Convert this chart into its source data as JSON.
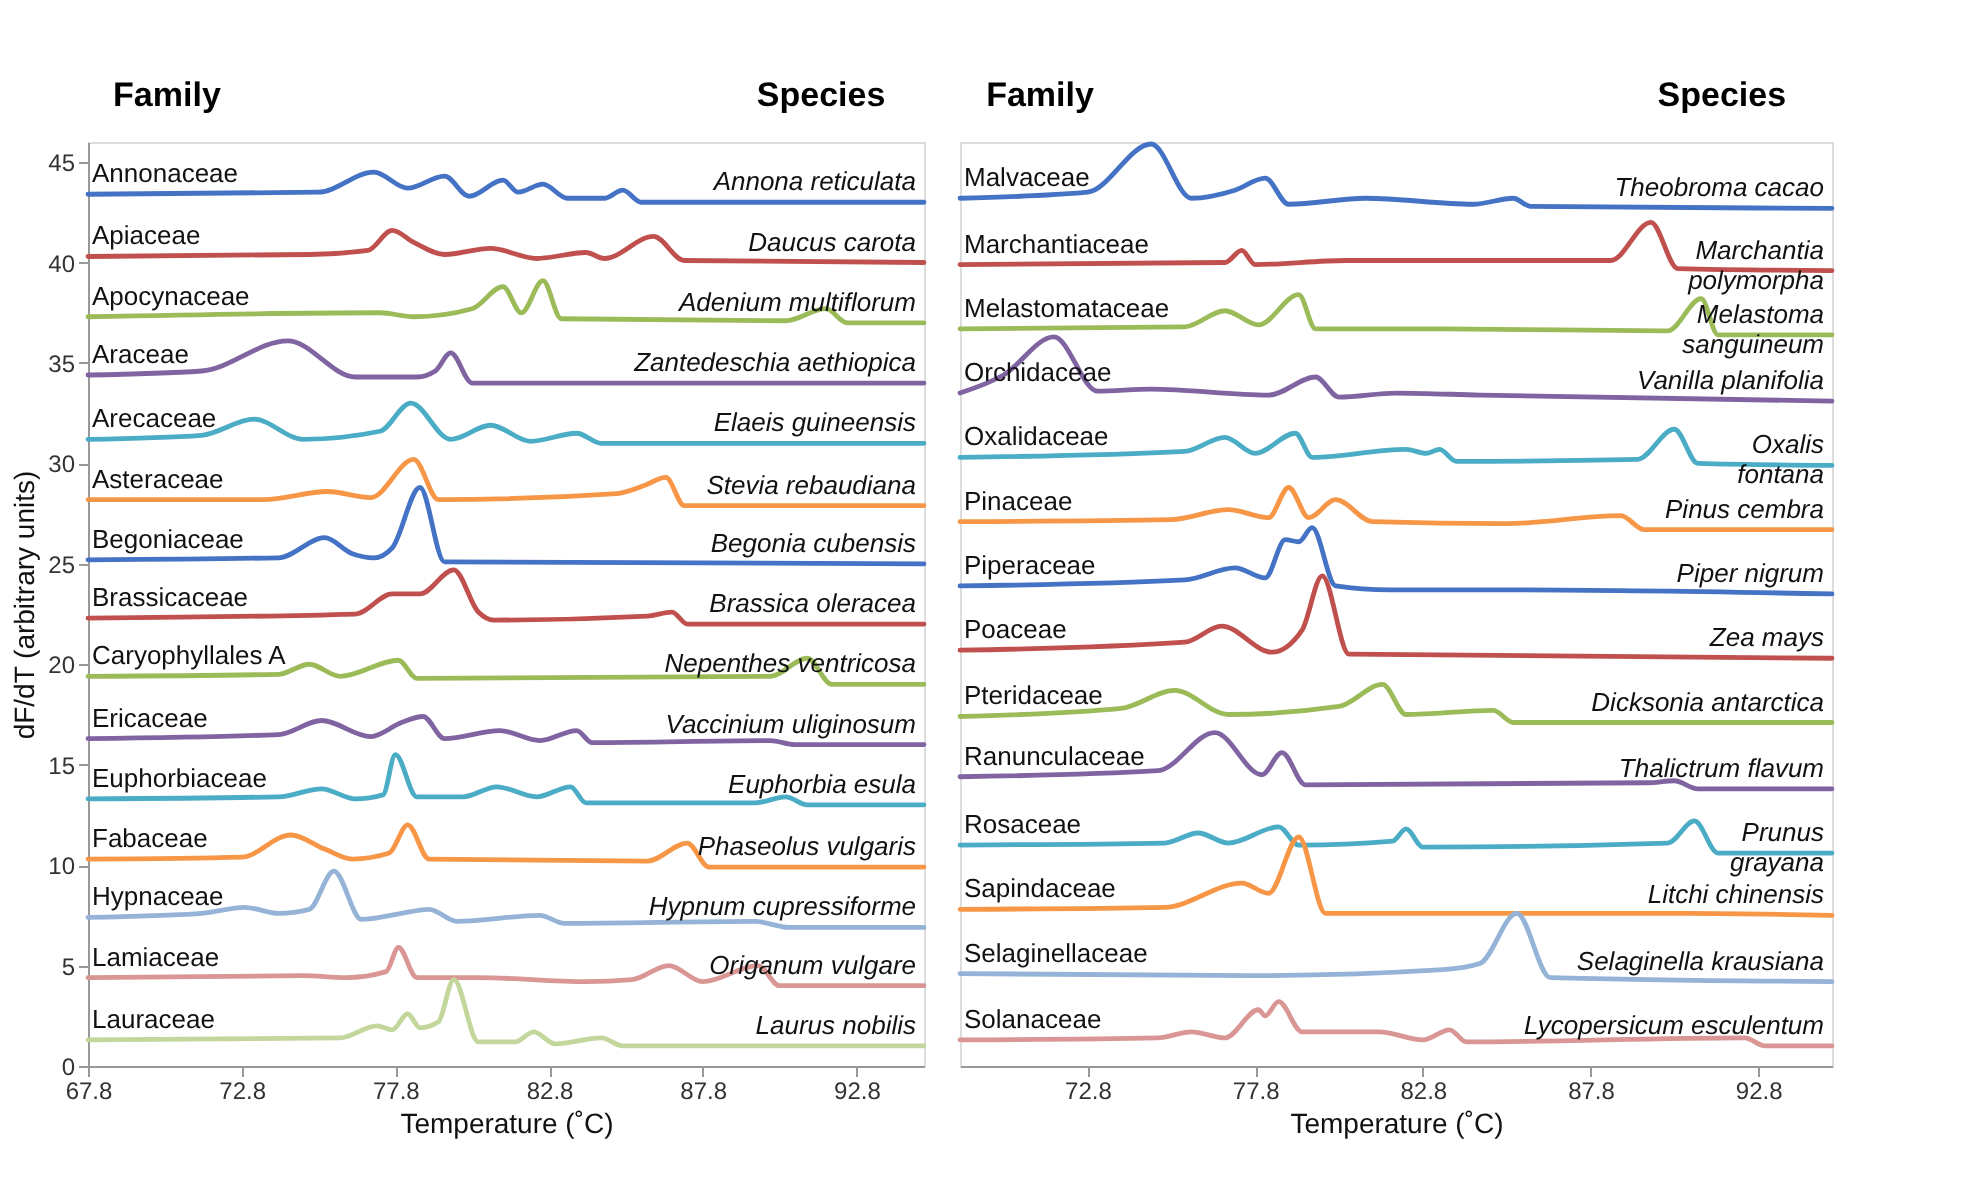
{
  "chart_data": [
    {
      "type": "line",
      "xlabel": "Temperature (˚C)",
      "ylabel": "dF/dT (arbitrary units)",
      "xlim": [
        67.8,
        95.0
      ],
      "ylim": [
        0,
        46
      ],
      "xticks": [
        67.8,
        72.8,
        77.8,
        82.8,
        87.8,
        92.8
      ],
      "yticks": [
        0,
        5,
        10,
        15,
        20,
        25,
        30,
        35,
        40,
        45
      ],
      "line_style": "solid",
      "series": [
        {
          "name": "Annonaceae",
          "color": "#4472c4",
          "x": [
            67.8,
            75.3,
            77.1,
            78.2,
            79.4,
            80.2,
            81.3,
            81.8,
            82.6,
            83.4,
            84.6,
            85.2,
            85.8,
            95.0
          ],
          "values": [
            43.4,
            43.5,
            44.5,
            43.7,
            44.3,
            43.3,
            44.1,
            43.5,
            43.9,
            43.2,
            43.2,
            43.6,
            43.0,
            43.0
          ]
        },
        {
          "name": "Apiaceae",
          "color": "#c0504d",
          "x": [
            67.8,
            75.0,
            76.9,
            77.7,
            78.4,
            79.4,
            80.9,
            82.4,
            84.0,
            84.6,
            86.2,
            87.2,
            95.0
          ],
          "values": [
            40.3,
            40.4,
            40.6,
            41.6,
            41.0,
            40.4,
            40.7,
            40.2,
            40.5,
            40.2,
            41.3,
            40.1,
            40.0
          ]
        },
        {
          "name": "Apocynaceae",
          "color": "#9bbb59",
          "x": [
            67.8,
            77.3,
            78.4,
            80.3,
            81.3,
            81.9,
            82.6,
            83.2,
            90.5,
            91.8,
            92.5,
            95.0
          ],
          "values": [
            37.3,
            37.5,
            37.3,
            37.7,
            38.8,
            37.5,
            39.1,
            37.2,
            37.1,
            37.7,
            37.0,
            37.0
          ]
        },
        {
          "name": "Araceae",
          "color": "#8064a2",
          "x": [
            67.8,
            71.5,
            74.3,
            76.5,
            78.5,
            79.1,
            79.6,
            80.3,
            95.0
          ],
          "values": [
            34.4,
            34.6,
            36.1,
            34.3,
            34.3,
            34.6,
            35.5,
            34.0,
            34.0
          ]
        },
        {
          "name": "Arecaceae",
          "color": "#4bacc6",
          "x": [
            67.8,
            71.5,
            73.2,
            74.8,
            77.3,
            78.3,
            79.6,
            80.9,
            82.2,
            83.7,
            84.5,
            95.0
          ],
          "values": [
            31.2,
            31.4,
            32.2,
            31.2,
            31.6,
            33.0,
            31.2,
            31.9,
            31.1,
            31.5,
            31.0,
            31.0
          ]
        },
        {
          "name": "Asteraceae",
          "color": "#f79646",
          "x": [
            67.8,
            73.5,
            75.6,
            77.0,
            78.4,
            79.2,
            85.0,
            85.9,
            86.6,
            87.2,
            95.0
          ],
          "values": [
            28.2,
            28.2,
            28.6,
            28.3,
            30.2,
            28.2,
            28.5,
            28.9,
            29.3,
            27.9,
            27.9
          ]
        },
        {
          "name": "Begoniaceae",
          "color": "#4472c4",
          "x": [
            67.8,
            74.0,
            75.5,
            76.4,
            77.1,
            77.7,
            78.6,
            79.4,
            95.0
          ],
          "values": [
            25.2,
            25.3,
            26.3,
            25.5,
            25.3,
            25.8,
            28.8,
            25.1,
            25.0
          ]
        },
        {
          "name": "Brassicaceae",
          "color": "#c0504d",
          "x": [
            67.8,
            76.5,
            77.7,
            78.6,
            79.7,
            80.5,
            81.0,
            86.0,
            86.8,
            87.3,
            95.0
          ],
          "values": [
            22.3,
            22.5,
            23.5,
            23.5,
            24.7,
            22.6,
            22.2,
            22.4,
            22.6,
            22.0,
            22.0
          ]
        },
        {
          "name": "Caryophyllales A",
          "color": "#9bbb59",
          "x": [
            67.8,
            74.0,
            75.0,
            76.0,
            77.9,
            78.5,
            90.0,
            91.2,
            92.0,
            95.0
          ],
          "values": [
            19.4,
            19.5,
            20.0,
            19.4,
            20.2,
            19.3,
            19.4,
            20.3,
            19.0,
            19.0
          ]
        },
        {
          "name": "Ericaceae",
          "color": "#8064a2",
          "x": [
            67.8,
            74.0,
            75.4,
            77.0,
            78.0,
            78.7,
            79.4,
            81.2,
            82.5,
            83.7,
            84.2,
            90.0,
            90.8,
            95.0
          ],
          "values": [
            16.3,
            16.5,
            17.2,
            16.4,
            17.1,
            17.4,
            16.3,
            16.7,
            16.2,
            16.7,
            16.1,
            16.2,
            16.0,
            16.0
          ]
        },
        {
          "name": "Euphorbiaceae",
          "color": "#4bacc6",
          "x": [
            67.8,
            74.0,
            75.4,
            76.5,
            77.4,
            77.8,
            78.5,
            80.0,
            81.1,
            82.4,
            83.5,
            84.0,
            89.5,
            90.5,
            91.2,
            95.0
          ],
          "values": [
            13.3,
            13.4,
            13.8,
            13.3,
            13.5,
            15.5,
            13.4,
            13.4,
            13.9,
            13.4,
            13.9,
            13.1,
            13.1,
            13.4,
            13.0,
            13.0
          ]
        },
        {
          "name": "Fabaceae",
          "color": "#f79646",
          "x": [
            67.8,
            72.8,
            74.4,
            75.5,
            76.4,
            77.6,
            78.2,
            78.9,
            86.0,
            87.3,
            88.0,
            95.0
          ],
          "values": [
            10.3,
            10.4,
            11.5,
            10.8,
            10.3,
            10.6,
            12.0,
            10.3,
            10.2,
            11.1,
            9.9,
            9.9
          ]
        },
        {
          "name": "Hypnaceae",
          "color": "#95b3d7",
          "x": [
            67.8,
            71.5,
            72.9,
            74.0,
            75.0,
            75.8,
            76.7,
            78.0,
            78.9,
            79.8,
            82.5,
            83.3,
            89.5,
            90.6,
            95.0
          ],
          "values": [
            7.4,
            7.6,
            7.9,
            7.6,
            7.8,
            9.7,
            7.3,
            7.6,
            7.8,
            7.2,
            7.5,
            7.1,
            7.2,
            6.9,
            6.9
          ]
        },
        {
          "name": "Lamiaceae",
          "color": "#d99694",
          "x": [
            67.8,
            74.8,
            76.2,
            77.5,
            77.9,
            78.5,
            80.5,
            84.0,
            85.5,
            86.7,
            87.8,
            89.6,
            90.3,
            95.0
          ],
          "values": [
            4.4,
            4.5,
            4.4,
            4.7,
            5.9,
            4.4,
            4.4,
            4.2,
            4.3,
            5.0,
            4.2,
            5.0,
            4.0,
            4.0
          ]
        },
        {
          "name": "Lauraceae",
          "color": "#c3d69b",
          "x": [
            67.8,
            76.0,
            77.2,
            77.7,
            78.2,
            78.6,
            79.2,
            79.7,
            80.5,
            81.7,
            82.3,
            83.0,
            84.5,
            85.2,
            95.0
          ],
          "values": [
            1.3,
            1.4,
            2.0,
            1.8,
            2.6,
            1.9,
            2.2,
            4.3,
            1.2,
            1.2,
            1.7,
            1.1,
            1.4,
            1.0,
            1.0
          ]
        }
      ],
      "annotations": [
        "Family",
        "Species",
        "Annona reticulata",
        "Daucus carota",
        "Adenium multiflorum",
        "Zantedeschia aethiopica",
        "Elaeis guineensis",
        "Stevia rebaudiana",
        "Begonia cubensis",
        "Brassica oleracea",
        "Nepenthes ventricosa",
        "Vaccinium uliginosum",
        "Euphorbia esula",
        "Phaseolus vulgaris",
        "Hypnum cupressiforme",
        "Origanum vulgare",
        "Laurus nobilis"
      ]
    },
    {
      "type": "line",
      "xlabel": "Temperature (˚C)",
      "xlim": [
        69.0,
        95.0
      ],
      "ylim": [
        0,
        46
      ],
      "xticks": [
        72.8,
        77.8,
        82.8,
        87.8,
        92.8
      ],
      "tick_labels": "x",
      "line_style": "solid",
      "series": [
        {
          "name": "Malvaceae",
          "color": "#4472c4",
          "x": [
            69.0,
            72.8,
            74.7,
            75.9,
            77.2,
            78.1,
            78.8,
            81.1,
            84.3,
            85.5,
            86.0,
            95.0
          ],
          "values": [
            43.2,
            43.5,
            45.9,
            43.2,
            43.6,
            44.2,
            42.9,
            43.2,
            42.9,
            43.2,
            42.8,
            42.7
          ]
        },
        {
          "name": "Marchantiaceae",
          "color": "#c0504d",
          "x": [
            69.0,
            76.9,
            77.4,
            77.8,
            80.5,
            88.4,
            89.6,
            90.4,
            95.0
          ],
          "values": [
            39.9,
            40.0,
            40.6,
            39.9,
            40.1,
            40.1,
            42.0,
            39.7,
            39.6
          ]
        },
        {
          "name": "Melastomataceae",
          "color": "#9bbb59",
          "x": [
            69.0,
            75.7,
            76.9,
            77.9,
            79.1,
            79.6,
            83.4,
            90.1,
            91.1,
            91.6,
            95.0
          ],
          "values": [
            36.7,
            36.8,
            37.6,
            36.9,
            38.4,
            36.7,
            36.7,
            36.6,
            38.2,
            36.4,
            36.4
          ]
        },
        {
          "name": "Orchidaceae",
          "color": "#8064a2",
          "x": [
            69.0,
            70.3,
            71.8,
            73.1,
            74.7,
            78.2,
            79.6,
            80.3,
            82.0,
            84.5,
            95.0
          ],
          "values": [
            33.5,
            34.4,
            36.3,
            33.6,
            33.7,
            33.4,
            34.3,
            33.3,
            33.5,
            33.4,
            33.1
          ]
        },
        {
          "name": "Oxalidaceae",
          "color": "#4bacc6",
          "x": [
            69.0,
            75.7,
            76.9,
            77.8,
            79.0,
            79.5,
            82.3,
            82.9,
            83.3,
            83.8,
            89.2,
            90.3,
            91.0,
            95.0
          ],
          "values": [
            30.3,
            30.6,
            31.3,
            30.5,
            31.5,
            30.3,
            30.7,
            30.5,
            30.7,
            30.1,
            30.2,
            31.7,
            30.0,
            29.9
          ]
        },
        {
          "name": "Pinaceae",
          "color": "#f79646",
          "x": [
            69.0,
            75.3,
            77.0,
            78.2,
            78.8,
            79.4,
            80.2,
            81.3,
            85.3,
            88.7,
            89.4,
            95.0
          ],
          "values": [
            27.1,
            27.2,
            27.7,
            27.3,
            28.8,
            27.3,
            28.2,
            27.1,
            27.0,
            27.4,
            26.7,
            26.7
          ]
        },
        {
          "name": "Piperaceae",
          "color": "#4472c4",
          "x": [
            69.0,
            75.7,
            77.2,
            78.1,
            78.7,
            79.1,
            79.5,
            80.2,
            81.8,
            85.3,
            95.0
          ],
          "values": [
            23.9,
            24.2,
            24.8,
            24.3,
            26.2,
            26.1,
            26.8,
            23.9,
            23.7,
            23.7,
            23.5
          ]
        },
        {
          "name": "Poaceae",
          "color": "#c0504d",
          "x": [
            69.0,
            75.7,
            76.8,
            78.3,
            79.2,
            79.8,
            80.6,
            95.0
          ],
          "values": [
            20.7,
            21.1,
            21.9,
            20.6,
            21.7,
            24.4,
            20.5,
            20.3
          ]
        },
        {
          "name": "Pteridaceae",
          "color": "#9bbb59",
          "x": [
            69.0,
            73.8,
            75.4,
            77.0,
            80.3,
            81.6,
            82.3,
            84.9,
            85.5,
            95.0
          ],
          "values": [
            17.4,
            17.8,
            18.7,
            17.5,
            17.9,
            19.0,
            17.5,
            17.7,
            17.1,
            17.1
          ]
        },
        {
          "name": "Ranunculaceae",
          "color": "#8064a2",
          "x": [
            69.0,
            74.9,
            76.6,
            78.0,
            78.6,
            79.3,
            89.5,
            90.3,
            91.0,
            95.0
          ],
          "values": [
            14.4,
            14.7,
            16.6,
            14.5,
            15.6,
            14.0,
            14.1,
            14.2,
            13.8,
            13.8
          ]
        },
        {
          "name": "Rosaceae",
          "color": "#4bacc6",
          "x": [
            69.0,
            75.1,
            76.1,
            77.0,
            78.5,
            79.1,
            81.9,
            82.3,
            82.8,
            90.1,
            90.9,
            91.6,
            95.0
          ],
          "values": [
            11.0,
            11.1,
            11.6,
            11.1,
            11.9,
            11.0,
            11.2,
            11.8,
            10.9,
            11.1,
            12.2,
            10.6,
            10.6
          ]
        },
        {
          "name": "Sapindaceae",
          "color": "#f79646",
          "x": [
            69.0,
            75.1,
            77.4,
            78.2,
            79.1,
            79.9,
            90.7,
            95.0
          ],
          "values": [
            7.8,
            7.9,
            9.1,
            8.6,
            11.4,
            7.6,
            7.6,
            7.5
          ]
        },
        {
          "name": "Selaginellaceae",
          "color": "#95b3d7",
          "x": [
            69.0,
            77.6,
            83.4,
            84.5,
            85.6,
            86.6,
            95.0
          ],
          "values": [
            4.6,
            4.5,
            4.8,
            5.1,
            7.6,
            4.4,
            4.2
          ]
        },
        {
          "name": "Solanaceae",
          "color": "#d99694",
          "x": [
            69.0,
            74.9,
            75.9,
            76.9,
            77.9,
            78.1,
            78.5,
            79.2,
            81.5,
            82.8,
            83.6,
            84.1,
            92.4,
            93.0,
            95.0
          ],
          "values": [
            1.3,
            1.4,
            1.7,
            1.4,
            2.8,
            2.5,
            3.2,
            1.7,
            1.7,
            1.3,
            1.8,
            1.2,
            1.4,
            1.0,
            1.0
          ]
        }
      ],
      "annotations": [
        "Family",
        "Species",
        "Theobroma cacao",
        "Marchantia\npolymorpha",
        "Melastoma\nsanguineum",
        "Vanilla planifolia",
        "Oxalis\nfontana",
        "Pinus cembra",
        "Piper nigrum",
        "Zea  mays",
        "Dicksonia antarctica",
        "Thalictrum flavum",
        "Prunus\ngrayana",
        "Litchi chinensis",
        "Selaginella krausiana",
        "Lycopersicum esculentum"
      ]
    }
  ]
}
